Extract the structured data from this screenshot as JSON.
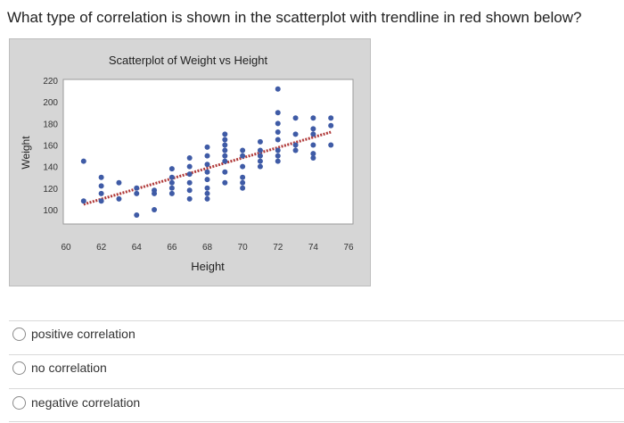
{
  "question": {
    "text": "What type of correlation is shown in the scatterplot with trendline in red shown below?"
  },
  "chart_data": {
    "type": "scatter",
    "title": "Scatterplot of Weight vs Height",
    "xlabel": "Height",
    "ylabel": "Weight",
    "xlim": [
      60,
      76
    ],
    "ylim": [
      95,
      225
    ],
    "x_ticks": [
      "60",
      "62",
      "64",
      "66",
      "68",
      "70",
      "72",
      "74",
      "76"
    ],
    "y_ticks": [
      "100",
      "120",
      "140",
      "160",
      "180",
      "200",
      "220"
    ],
    "grid": false,
    "point_color": "#3f5ba6",
    "trend_color": "#b03a3a",
    "trendline": {
      "x": [
        61,
        75
      ],
      "y": [
        105,
        172
      ]
    },
    "points": [
      {
        "x": 61,
        "y": 108
      },
      {
        "x": 61,
        "y": 145
      },
      {
        "x": 62,
        "y": 108
      },
      {
        "x": 62,
        "y": 115
      },
      {
        "x": 62,
        "y": 122
      },
      {
        "x": 62,
        "y": 130
      },
      {
        "x": 63,
        "y": 110
      },
      {
        "x": 63,
        "y": 125
      },
      {
        "x": 64,
        "y": 95
      },
      {
        "x": 64,
        "y": 115
      },
      {
        "x": 64,
        "y": 120
      },
      {
        "x": 65,
        "y": 100
      },
      {
        "x": 65,
        "y": 115
      },
      {
        "x": 65,
        "y": 118
      },
      {
        "x": 66,
        "y": 115
      },
      {
        "x": 66,
        "y": 120
      },
      {
        "x": 66,
        "y": 125
      },
      {
        "x": 66,
        "y": 130
      },
      {
        "x": 66,
        "y": 138
      },
      {
        "x": 67,
        "y": 110
      },
      {
        "x": 67,
        "y": 118
      },
      {
        "x": 67,
        "y": 125
      },
      {
        "x": 67,
        "y": 133
      },
      {
        "x": 67,
        "y": 140
      },
      {
        "x": 67,
        "y": 148
      },
      {
        "x": 68,
        "y": 110
      },
      {
        "x": 68,
        "y": 115
      },
      {
        "x": 68,
        "y": 120
      },
      {
        "x": 68,
        "y": 128
      },
      {
        "x": 68,
        "y": 135
      },
      {
        "x": 68,
        "y": 142
      },
      {
        "x": 68,
        "y": 150
      },
      {
        "x": 68,
        "y": 158
      },
      {
        "x": 69,
        "y": 125
      },
      {
        "x": 69,
        "y": 135
      },
      {
        "x": 69,
        "y": 145
      },
      {
        "x": 69,
        "y": 150
      },
      {
        "x": 69,
        "y": 155
      },
      {
        "x": 69,
        "y": 160
      },
      {
        "x": 69,
        "y": 165
      },
      {
        "x": 69,
        "y": 170
      },
      {
        "x": 70,
        "y": 120
      },
      {
        "x": 70,
        "y": 125
      },
      {
        "x": 70,
        "y": 130
      },
      {
        "x": 70,
        "y": 140
      },
      {
        "x": 70,
        "y": 150
      },
      {
        "x": 70,
        "y": 155
      },
      {
        "x": 71,
        "y": 140
      },
      {
        "x": 71,
        "y": 145
      },
      {
        "x": 71,
        "y": 150
      },
      {
        "x": 71,
        "y": 155
      },
      {
        "x": 71,
        "y": 163
      },
      {
        "x": 72,
        "y": 145
      },
      {
        "x": 72,
        "y": 150
      },
      {
        "x": 72,
        "y": 155
      },
      {
        "x": 72,
        "y": 165
      },
      {
        "x": 72,
        "y": 172
      },
      {
        "x": 72,
        "y": 180
      },
      {
        "x": 72,
        "y": 190
      },
      {
        "x": 72,
        "y": 212
      },
      {
        "x": 73,
        "y": 155
      },
      {
        "x": 73,
        "y": 160
      },
      {
        "x": 73,
        "y": 170
      },
      {
        "x": 73,
        "y": 185
      },
      {
        "x": 74,
        "y": 148
      },
      {
        "x": 74,
        "y": 152
      },
      {
        "x": 74,
        "y": 160
      },
      {
        "x": 74,
        "y": 170
      },
      {
        "x": 74,
        "y": 175
      },
      {
        "x": 74,
        "y": 185
      },
      {
        "x": 75,
        "y": 160
      },
      {
        "x": 75,
        "y": 178
      },
      {
        "x": 75,
        "y": 185
      }
    ]
  },
  "choices": [
    {
      "label": "positive correlation"
    },
    {
      "label": "no correlation"
    },
    {
      "label": "negative correlation"
    }
  ]
}
